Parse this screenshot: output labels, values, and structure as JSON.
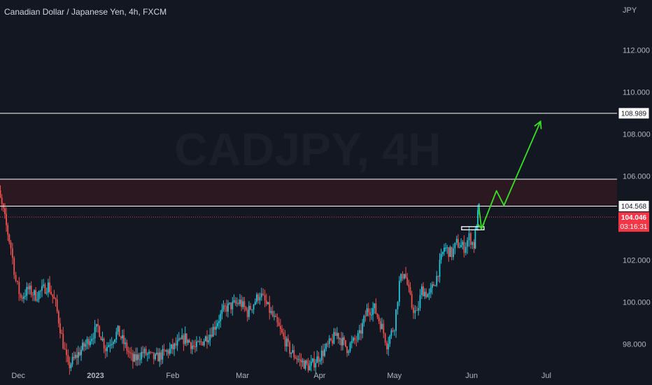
{
  "header": {
    "title": "Canadian Dollar / Japanese Yen, 4h, FXCM",
    "currency": "JPY",
    "watermark": "CADJPY, 4H"
  },
  "colors": {
    "background": "#131722",
    "up": "#26c6da",
    "down": "#ef5350",
    "zone": "#2c1820",
    "level_line": "#ffffff",
    "arrow": "#38e026",
    "current_price": "#f23645"
  },
  "chart_data": {
    "type": "candlestick",
    "symbol": "CADJPY",
    "timeframe": "4h",
    "ylim": [
      96.7,
      113.2
    ],
    "y_ticks": [
      "112.000",
      "110.000",
      "108.000",
      "106.000",
      "102.000",
      "100.000",
      "98.000"
    ],
    "x_ticks": [
      "Dec",
      "2023",
      "Feb",
      "Mar",
      "Apr",
      "May",
      "Jun",
      "Jul"
    ],
    "resistance_zone": {
      "low": 104.568,
      "high": 105.85
    },
    "levels": [
      {
        "price": 108.989,
        "label": "108.989"
      },
      {
        "price": 104.568,
        "label": "104.568"
      }
    ],
    "current_price": {
      "value": 104.046,
      "label": "104.046",
      "countdown": "03:16:31"
    },
    "series_anchor_points": [
      {
        "x": "Nov 20",
        "y": 105.5
      },
      {
        "x": "Nov 22",
        "y": 105.7
      },
      {
        "x": "Nov 25",
        "y": 104.3
      },
      {
        "x": "Nov 28",
        "y": 102.6
      },
      {
        "x": "Nov 30",
        "y": 101.0
      },
      {
        "x": "Dec 2",
        "y": 100.2
      },
      {
        "x": "Dec 5",
        "y": 100.6
      },
      {
        "x": "Dec 8",
        "y": 100.3
      },
      {
        "x": "Dec 13",
        "y": 100.8
      },
      {
        "x": "Dec 16",
        "y": 99.9
      },
      {
        "x": "Dec 19",
        "y": 98.0
      },
      {
        "x": "Dec 21",
        "y": 96.9
      },
      {
        "x": "Dec 28",
        "y": 98.0
      },
      {
        "x": "Jan 2",
        "y": 98.8
      },
      {
        "x": "Jan 5",
        "y": 97.8
      },
      {
        "x": "Jan 10",
        "y": 98.6
      },
      {
        "x": "Jan 16",
        "y": 97.2
      },
      {
        "x": "Jan 20",
        "y": 97.6
      },
      {
        "x": "Jan 25",
        "y": 97.3
      },
      {
        "x": "Feb 1",
        "y": 97.8
      },
      {
        "x": "Feb 6",
        "y": 98.3
      },
      {
        "x": "Feb 10",
        "y": 97.8
      },
      {
        "x": "Feb 16",
        "y": 98.5
      },
      {
        "x": "Feb 22",
        "y": 99.7
      },
      {
        "x": "Feb 28",
        "y": 100.0
      },
      {
        "x": "Mar 3",
        "y": 99.5
      },
      {
        "x": "Mar 8",
        "y": 100.4
      },
      {
        "x": "Mar 10",
        "y": 100.0
      },
      {
        "x": "Mar 15",
        "y": 98.9
      },
      {
        "x": "Mar 20",
        "y": 97.7
      },
      {
        "x": "Mar 24",
        "y": 97.2
      },
      {
        "x": "Mar 28",
        "y": 96.9
      },
      {
        "x": "Apr 3",
        "y": 97.7
      },
      {
        "x": "Apr 8",
        "y": 98.5
      },
      {
        "x": "Apr 12",
        "y": 97.8
      },
      {
        "x": "Apr 17",
        "y": 98.4
      },
      {
        "x": "Apr 20",
        "y": 99.6
      },
      {
        "x": "Apr 23",
        "y": 99.7
      },
      {
        "x": "Apr 26",
        "y": 98.8
      },
      {
        "x": "Apr 28",
        "y": 98.0
      },
      {
        "x": "May 1",
        "y": 98.9
      },
      {
        "x": "May 3",
        "y": 100.9
      },
      {
        "x": "May 5",
        "y": 101.5
      },
      {
        "x": "May 8",
        "y": 99.8
      },
      {
        "x": "May 10",
        "y": 99.4
      },
      {
        "x": "May 12",
        "y": 100.6
      },
      {
        "x": "May 15",
        "y": 100.3
      },
      {
        "x": "May 18",
        "y": 101.2
      },
      {
        "x": "May 21",
        "y": 102.6
      },
      {
        "x": "May 24",
        "y": 102.3
      },
      {
        "x": "May 26",
        "y": 102.8
      },
      {
        "x": "May 29",
        "y": 102.6
      },
      {
        "x": "May 31",
        "y": 103.1
      },
      {
        "x": "Jun 2",
        "y": 102.7
      },
      {
        "x": "Jun 3",
        "y": 103.8
      },
      {
        "x": "Jun 4",
        "y": 104.5
      }
    ],
    "projection_path": [
      {
        "x": "Jun 4",
        "y": 104.46
      },
      {
        "x": "Jun 5",
        "y": 103.49
      },
      {
        "x": "Jun 11",
        "y": 105.3
      },
      {
        "x": "Jun 14",
        "y": 104.6
      },
      {
        "x": "Jun 27",
        "y": 108.6
      }
    ],
    "marked_box": {
      "start": "May 28",
      "end": "Jun 6",
      "low": 103.44,
      "high": 103.59
    }
  }
}
